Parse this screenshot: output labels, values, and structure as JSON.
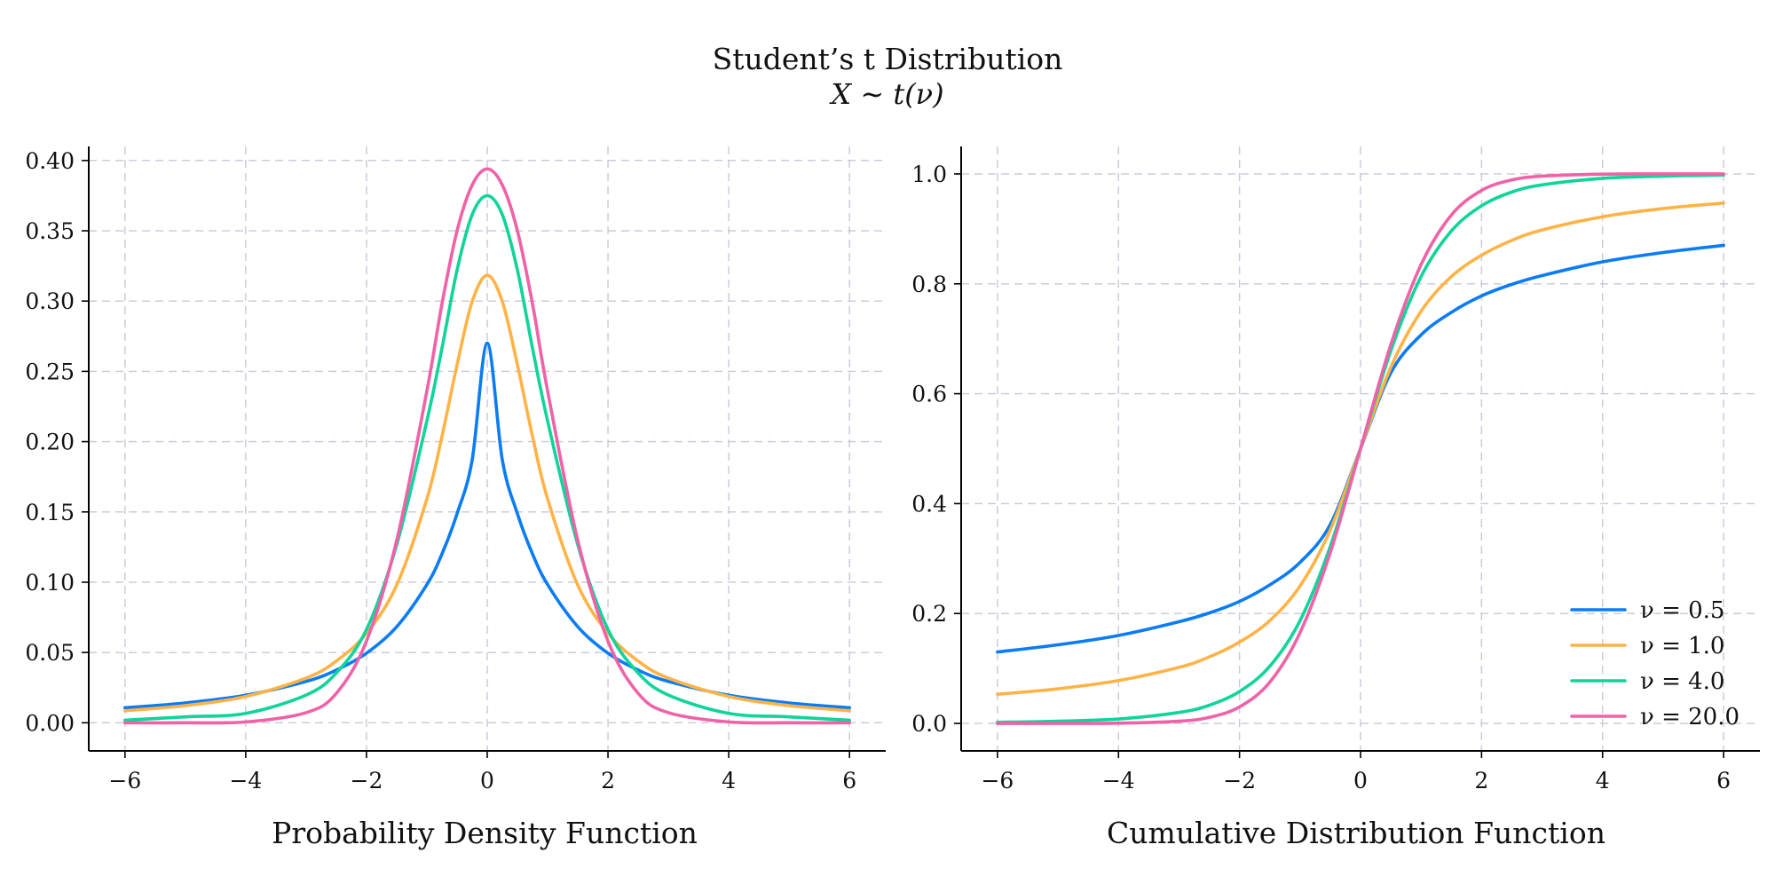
{
  "figure": {
    "title": "Student’s t Distribution",
    "subtitle": "X ∼ t(ν)"
  },
  "series_styles": [
    {
      "nu": 0.5,
      "label": "ν = 0.5",
      "color": "#0a7cf5"
    },
    {
      "nu": 1.0,
      "label": "ν = 1.0",
      "color": "#ffb347"
    },
    {
      "nu": 4.0,
      "label": "ν = 4.0",
      "color": "#10d49a"
    },
    {
      "nu": 20.0,
      "label": "ν = 20.0",
      "color": "#f062a8"
    }
  ],
  "legend": {
    "position": "lower-right",
    "panel": "cdf"
  },
  "chart_data": [
    {
      "id": "pdf",
      "type": "line",
      "title": "",
      "xlabel": "Probability Density Function",
      "ylabel": "",
      "xlim": [
        -6.6,
        6.6
      ],
      "ylim": [
        -0.02,
        0.41
      ],
      "xticks": [
        -6,
        -4,
        -2,
        0,
        2,
        4,
        6
      ],
      "xtick_labels": [
        "−6",
        "−4",
        "−2",
        "0",
        "2",
        "4",
        "6"
      ],
      "yticks": [
        0.0,
        0.05,
        0.1,
        0.15,
        0.2,
        0.25,
        0.3,
        0.35,
        0.4
      ],
      "ytick_labels": [
        "0.00",
        "0.05",
        "0.10",
        "0.15",
        "0.20",
        "0.25",
        "0.30",
        "0.35",
        "0.40"
      ],
      "grid": true,
      "x": [
        -6,
        -5,
        -4,
        -3,
        -2.5,
        -2,
        -1.5,
        -1,
        -0.75,
        -0.5,
        -0.25,
        0,
        0.25,
        0.5,
        0.75,
        1,
        1.5,
        2,
        2.5,
        3,
        4,
        5,
        6
      ],
      "series": [
        {
          "name": "ν = 0.5",
          "values": [
            0.0107,
            0.0141,
            0.0196,
            0.0294,
            0.0375,
            0.0495,
            0.0683,
            0.0983,
            0.1201,
            0.1487,
            0.1869,
            0.27,
            0.1869,
            0.1487,
            0.1201,
            0.0983,
            0.0683,
            0.0495,
            0.0375,
            0.0294,
            0.0196,
            0.0141,
            0.0107
          ]
        },
        {
          "name": "ν = 1.0",
          "values": [
            0.0086,
            0.0122,
            0.0187,
            0.0318,
            0.0439,
            0.0637,
            0.0979,
            0.1592,
            0.2037,
            0.2546,
            0.2996,
            0.3183,
            0.2996,
            0.2546,
            0.2037,
            0.1592,
            0.0979,
            0.0637,
            0.0439,
            0.0318,
            0.0187,
            0.0122,
            0.0086
          ]
        },
        {
          "name": "ν = 4.0",
          "values": [
            0.0018,
            0.0042,
            0.0067,
            0.0197,
            0.0354,
            0.0663,
            0.1266,
            0.2147,
            0.2664,
            0.322,
            0.3614,
            0.375,
            0.3614,
            0.322,
            0.2664,
            0.2147,
            0.1266,
            0.0663,
            0.0354,
            0.0197,
            0.0067,
            0.0042,
            0.0018
          ]
        },
        {
          "name": "ν = 20.0",
          "values": [
            0.0,
            0.0,
            0.0006,
            0.0072,
            0.0209,
            0.0581,
            0.1296,
            0.236,
            0.298,
            0.35,
            0.3825,
            0.394,
            0.3825,
            0.35,
            0.298,
            0.236,
            0.1296,
            0.0581,
            0.0209,
            0.0072,
            0.0006,
            0.0,
            0.0
          ]
        }
      ]
    },
    {
      "id": "cdf",
      "type": "line",
      "title": "",
      "xlabel": "Cumulative Distribution Function",
      "ylabel": "",
      "xlim": [
        -6.6,
        6.6
      ],
      "ylim": [
        -0.05,
        1.05
      ],
      "xticks": [
        -6,
        -4,
        -2,
        0,
        2,
        4,
        6
      ],
      "xtick_labels": [
        "−6",
        "−4",
        "−2",
        "0",
        "2",
        "4",
        "6"
      ],
      "yticks": [
        0.0,
        0.2,
        0.4,
        0.6,
        0.8,
        1.0
      ],
      "ytick_labels": [
        "0.0",
        "0.2",
        "0.4",
        "0.6",
        "0.8",
        "1.0"
      ],
      "grid": true,
      "x": [
        -6,
        -5,
        -4,
        -3,
        -2.5,
        -2,
        -1.5,
        -1,
        -0.5,
        0,
        0.5,
        1,
        1.5,
        2,
        2.5,
        3,
        4,
        5,
        6
      ],
      "series": [
        {
          "name": "ν = 0.5",
          "values": [
            0.13,
            0.143,
            0.16,
            0.185,
            0.201,
            0.222,
            0.252,
            0.293,
            0.362,
            0.5,
            0.638,
            0.707,
            0.748,
            0.778,
            0.799,
            0.815,
            0.84,
            0.857,
            0.87
          ]
        },
        {
          "name": "ν = 1.0",
          "values": [
            0.053,
            0.063,
            0.078,
            0.102,
            0.121,
            0.148,
            0.187,
            0.25,
            0.352,
            0.5,
            0.648,
            0.75,
            0.813,
            0.852,
            0.879,
            0.898,
            0.922,
            0.937,
            0.947
          ]
        },
        {
          "name": "ν = 4.0",
          "values": [
            0.002,
            0.004,
            0.008,
            0.02,
            0.033,
            0.058,
            0.104,
            0.187,
            0.322,
            0.5,
            0.678,
            0.813,
            0.896,
            0.942,
            0.967,
            0.98,
            0.992,
            0.996,
            0.998
          ]
        },
        {
          "name": "ν = 20.0",
          "values": [
            0.0,
            0.0,
            0.0004,
            0.004,
            0.011,
            0.03,
            0.075,
            0.165,
            0.311,
            0.5,
            0.689,
            0.835,
            0.925,
            0.97,
            0.989,
            0.996,
            0.9996,
            1.0,
            1.0
          ]
        }
      ]
    }
  ]
}
